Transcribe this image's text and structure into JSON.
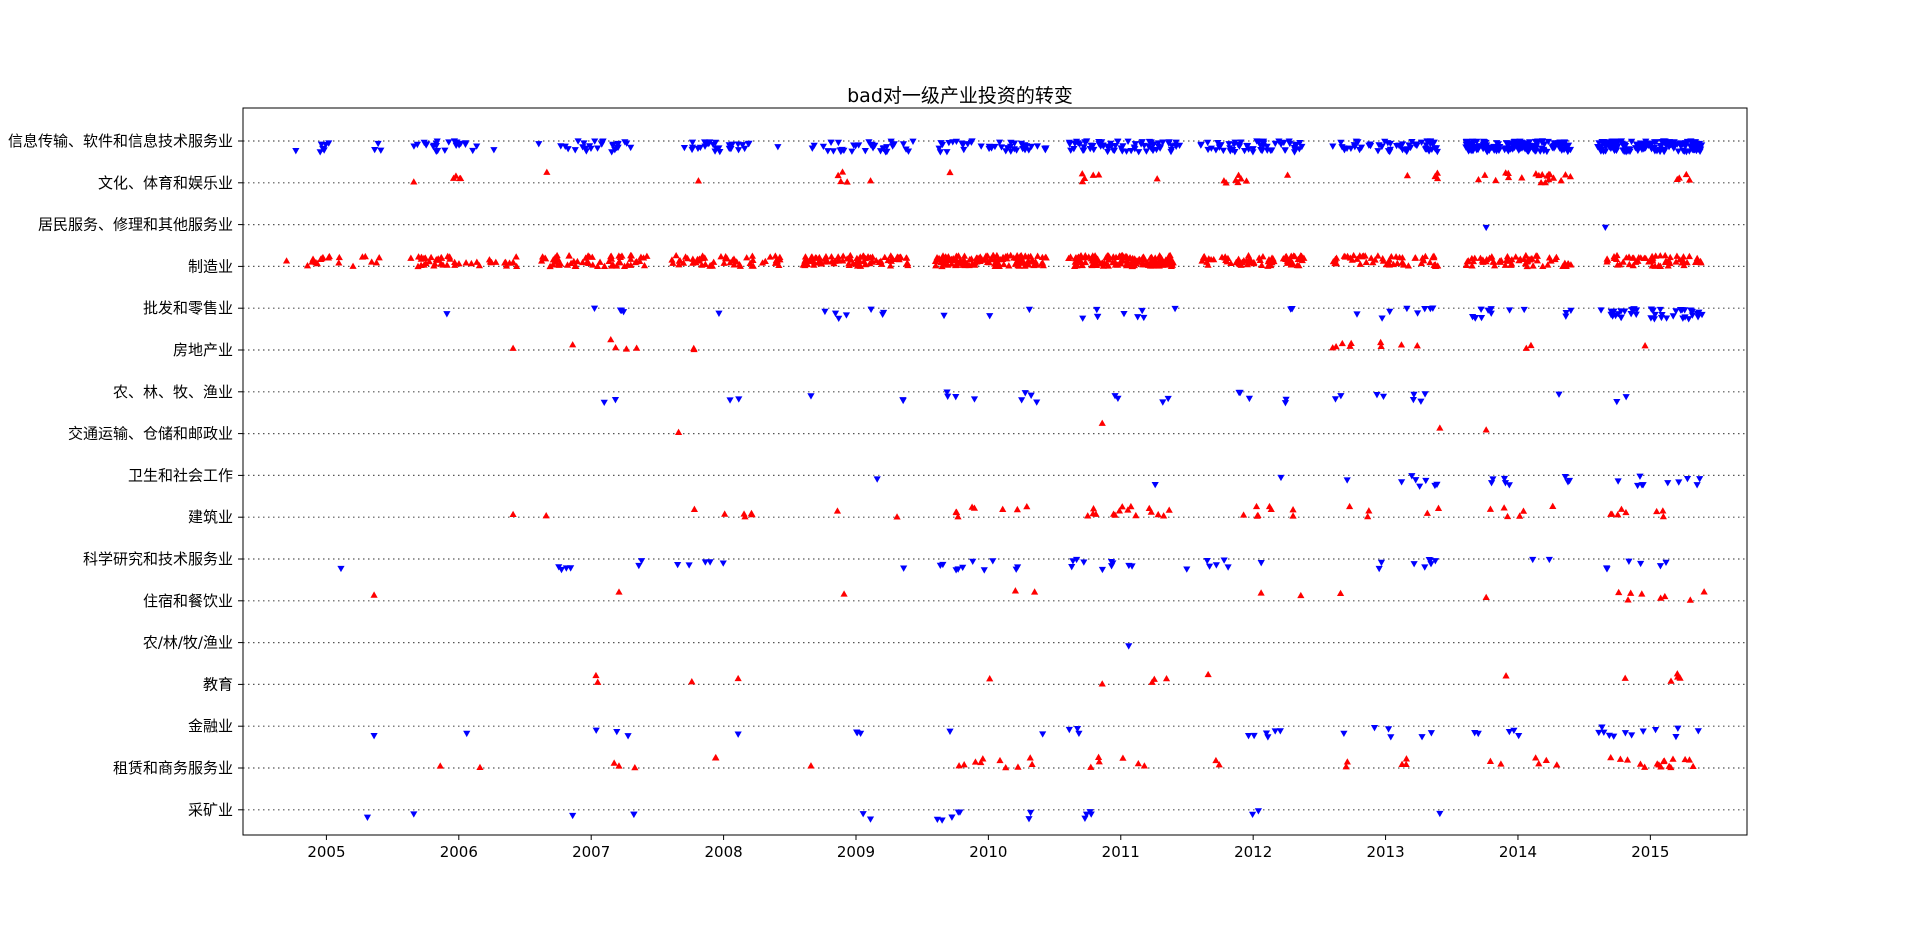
{
  "chart_data": {
    "type": "scatter",
    "title": "bad对一级产业投资的转变",
    "xlabel": "",
    "ylabel": "",
    "x_ticks": [
      "2005",
      "2006",
      "2007",
      "2008",
      "2009",
      "2010",
      "2011",
      "2012",
      "2013",
      "2014",
      "2015"
    ],
    "xlim": [
      2004.37,
      2015.73
    ],
    "grid": "horizontal dotted lines at each category",
    "legend": "none",
    "colors": {
      "up": "#ff0000",
      "down": "#0000ff"
    },
    "markers": {
      "up": "triangle-up (red)",
      "down": "triangle-down (blue)"
    },
    "categories": [
      {
        "label": "信息传输、软件和信息技术服务业",
        "marker": "down",
        "clusters": [
          [
            2004.7,
            2005.1,
            7
          ],
          [
            2005.35,
            2005.42,
            3
          ],
          [
            2005.6,
            2006.15,
            24
          ],
          [
            2006.25,
            2006.28,
            1
          ],
          [
            2006.6,
            2007.3,
            28
          ],
          [
            2007.7,
            2008.2,
            30
          ],
          [
            2008.4,
            2008.42,
            1
          ],
          [
            2008.65,
            2009.45,
            34
          ],
          [
            2009.6,
            2010.45,
            42
          ],
          [
            2010.6,
            2011.45,
            70
          ],
          [
            2011.6,
            2012.4,
            55
          ],
          [
            2012.6,
            2013.4,
            60
          ],
          [
            2013.6,
            2014.4,
            150
          ],
          [
            2014.6,
            2015.4,
            160
          ]
        ]
      },
      {
        "label": "文化、体育和娱乐业",
        "marker": "up",
        "clusters": [
          [
            2005.65,
            2005.67,
            1
          ],
          [
            2005.95,
            2006.05,
            4
          ],
          [
            2006.65,
            2006.68,
            1
          ],
          [
            2007.8,
            2007.82,
            1
          ],
          [
            2008.85,
            2008.95,
            4
          ],
          [
            2009.1,
            2009.12,
            1
          ],
          [
            2009.7,
            2009.72,
            1
          ],
          [
            2010.7,
            2010.85,
            5
          ],
          [
            2011.25,
            2011.3,
            1
          ],
          [
            2011.65,
            2011.95,
            7
          ],
          [
            2012.25,
            2012.27,
            1
          ],
          [
            2013.15,
            2013.18,
            1
          ],
          [
            2013.35,
            2013.4,
            3
          ],
          [
            2013.65,
            2014.4,
            20
          ],
          [
            2015.2,
            2015.4,
            4
          ]
        ]
      },
      {
        "label": "居民服务、修理和其他服务业",
        "marker": "down",
        "clusters": [
          [
            2013.75,
            2013.77,
            1
          ],
          [
            2014.65,
            2014.67,
            1
          ]
        ]
      },
      {
        "label": "制造业",
        "marker": "up",
        "clusters": [
          [
            2004.65,
            2005.1,
            14
          ],
          [
            2005.2,
            2005.45,
            6
          ],
          [
            2005.6,
            2006.45,
            45
          ],
          [
            2006.6,
            2007.45,
            60
          ],
          [
            2007.6,
            2008.45,
            55
          ],
          [
            2008.6,
            2009.4,
            90
          ],
          [
            2009.6,
            2010.45,
            130
          ],
          [
            2010.6,
            2011.4,
            140
          ],
          [
            2011.6,
            2012.4,
            70
          ],
          [
            2012.6,
            2013.4,
            55
          ],
          [
            2013.6,
            2014.4,
            60
          ],
          [
            2014.6,
            2015.4,
            55
          ]
        ]
      },
      {
        "label": "批发和零售业",
        "marker": "down",
        "clusters": [
          [
            2005.9,
            2005.92,
            1
          ],
          [
            2007.0,
            2007.05,
            1
          ],
          [
            2007.2,
            2007.3,
            3
          ],
          [
            2007.95,
            2007.98,
            1
          ],
          [
            2008.7,
            2008.95,
            4
          ],
          [
            2009.1,
            2009.25,
            3
          ],
          [
            2009.65,
            2009.68,
            1
          ],
          [
            2010.0,
            2010.02,
            1
          ],
          [
            2010.3,
            2010.32,
            1
          ],
          [
            2010.7,
            2011.2,
            8
          ],
          [
            2011.4,
            2011.42,
            1
          ],
          [
            2012.2,
            2012.3,
            2
          ],
          [
            2012.7,
            2013.4,
            8
          ],
          [
            2013.65,
            2014.1,
            10
          ],
          [
            2014.35,
            2014.4,
            3
          ],
          [
            2014.6,
            2015.4,
            45
          ]
        ]
      },
      {
        "label": "房地产业",
        "marker": "up",
        "clusters": [
          [
            2006.4,
            2006.42,
            1
          ],
          [
            2006.85,
            2006.87,
            1
          ],
          [
            2007.1,
            2007.4,
            4
          ],
          [
            2007.7,
            2007.9,
            2
          ],
          [
            2012.6,
            2012.75,
            5
          ],
          [
            2012.95,
            2013.3,
            4
          ],
          [
            2014.05,
            2014.1,
            2
          ],
          [
            2014.95,
            2014.97,
            1
          ]
        ]
      },
      {
        "label": "农、林、牧、渔业",
        "marker": "down",
        "clusters": [
          [
            2007.05,
            2007.3,
            2
          ],
          [
            2007.95,
            2008.2,
            2
          ],
          [
            2008.65,
            2008.67,
            1
          ],
          [
            2009.05,
            2009.4,
            2
          ],
          [
            2009.6,
            2009.95,
            4
          ],
          [
            2010.2,
            2010.4,
            4
          ],
          [
            2010.95,
            2011.0,
            2
          ],
          [
            2011.3,
            2011.4,
            2
          ],
          [
            2011.8,
            2012.3,
            5
          ],
          [
            2012.6,
            2013.35,
            8
          ],
          [
            2014.3,
            2014.32,
            1
          ],
          [
            2014.7,
            2014.85,
            2
          ]
        ]
      },
      {
        "label": "交通运输、仓储和邮政业",
        "marker": "up",
        "clusters": [
          [
            2007.65,
            2007.67,
            1
          ],
          [
            2010.85,
            2010.87,
            1
          ],
          [
            2013.4,
            2013.42,
            1
          ],
          [
            2013.75,
            2013.77,
            1
          ]
        ]
      },
      {
        "label": "卫生和社会工作",
        "marker": "down",
        "clusters": [
          [
            2009.15,
            2009.17,
            1
          ],
          [
            2011.25,
            2011.27,
            1
          ],
          [
            2012.2,
            2012.22,
            1
          ],
          [
            2012.7,
            2012.72,
            1
          ],
          [
            2013.1,
            2013.4,
            7
          ],
          [
            2013.8,
            2014.0,
            5
          ],
          [
            2014.35,
            2014.4,
            3
          ],
          [
            2014.7,
            2015.4,
            10
          ]
        ]
      },
      {
        "label": "建筑业",
        "marker": "up",
        "clusters": [
          [
            2006.4,
            2006.42,
            1
          ],
          [
            2006.65,
            2006.67,
            1
          ],
          [
            2007.65,
            2008.4,
            6
          ],
          [
            2008.85,
            2008.87,
            1
          ],
          [
            2009.3,
            2009.32,
            1
          ],
          [
            2009.7,
            2010.35,
            8
          ],
          [
            2010.65,
            2011.4,
            16
          ],
          [
            2011.6,
            2012.35,
            8
          ],
          [
            2012.7,
            2013.0,
            3
          ],
          [
            2013.3,
            2013.4,
            2
          ],
          [
            2013.7,
            2014.4,
            6
          ],
          [
            2014.7,
            2015.1,
            8
          ]
        ]
      },
      {
        "label": "科学研究和技术服务业",
        "marker": "down",
        "clusters": [
          [
            2005.1,
            2005.12,
            1
          ],
          [
            2006.65,
            2006.85,
            4
          ],
          [
            2007.3,
            2007.4,
            2
          ],
          [
            2007.65,
            2008.2,
            5
          ],
          [
            2009.35,
            2009.37,
            1
          ],
          [
            2009.6,
            2010.3,
            10
          ],
          [
            2010.6,
            2011.1,
            10
          ],
          [
            2011.4,
            2012.2,
            7
          ],
          [
            2012.8,
            2013.4,
            8
          ],
          [
            2014.1,
            2014.3,
            2
          ],
          [
            2014.6,
            2015.2,
            6
          ]
        ]
      },
      {
        "label": "住宿和餐饮业",
        "marker": "up",
        "clusters": [
          [
            2005.35,
            2005.37,
            1
          ],
          [
            2007.2,
            2007.22,
            1
          ],
          [
            2008.9,
            2008.92,
            1
          ],
          [
            2010.2,
            2010.35,
            2
          ],
          [
            2012.05,
            2012.07,
            1
          ],
          [
            2012.35,
            2012.37,
            1
          ],
          [
            2012.65,
            2012.67,
            1
          ],
          [
            2013.75,
            2013.77,
            1
          ],
          [
            2014.7,
            2015.45,
            8
          ]
        ]
      },
      {
        "label": "农/林/牧/渔业",
        "marker": "down",
        "clusters": [
          [
            2011.05,
            2011.07,
            1
          ]
        ]
      },
      {
        "label": "教育",
        "marker": "up",
        "clusters": [
          [
            2006.85,
            2007.05,
            2
          ],
          [
            2007.75,
            2007.77,
            1
          ],
          [
            2008.1,
            2008.12,
            1
          ],
          [
            2010.0,
            2010.02,
            1
          ],
          [
            2010.85,
            2010.87,
            1
          ],
          [
            2011.15,
            2011.35,
            3
          ],
          [
            2011.65,
            2011.67,
            1
          ],
          [
            2013.9,
            2013.92,
            1
          ],
          [
            2014.8,
            2014.82,
            1
          ],
          [
            2015.15,
            2015.35,
            4
          ]
        ]
      },
      {
        "label": "金融业",
        "marker": "down",
        "clusters": [
          [
            2005.35,
            2005.37,
            1
          ],
          [
            2006.05,
            2006.07,
            1
          ],
          [
            2006.9,
            2007.4,
            3
          ],
          [
            2008.1,
            2008.12,
            1
          ],
          [
            2008.9,
            2009.05,
            3
          ],
          [
            2009.7,
            2009.72,
            1
          ],
          [
            2010.4,
            2010.42,
            1
          ],
          [
            2010.6,
            2011.05,
            3
          ],
          [
            2011.9,
            2012.4,
            6
          ],
          [
            2012.65,
            2013.4,
            6
          ],
          [
            2013.6,
            2014.05,
            5
          ],
          [
            2014.6,
            2015.4,
            12
          ]
        ]
      },
      {
        "label": "租赁和商务服务业",
        "marker": "up",
        "clusters": [
          [
            2005.85,
            2005.87,
            1
          ],
          [
            2006.15,
            2006.17,
            1
          ],
          [
            2007.05,
            2007.35,
            3
          ],
          [
            2007.85,
            2008.1,
            2
          ],
          [
            2008.65,
            2008.67,
            1
          ],
          [
            2009.65,
            2010.35,
            10
          ],
          [
            2010.75,
            2011.25,
            6
          ],
          [
            2011.65,
            2011.75,
            2
          ],
          [
            2012.7,
            2012.75,
            2
          ],
          [
            2013.1,
            2013.25,
            3
          ],
          [
            2013.7,
            2014.4,
            6
          ],
          [
            2014.7,
            2015.4,
            16
          ]
        ]
      },
      {
        "label": "采矿业",
        "marker": "down",
        "clusters": [
          [
            2005.3,
            2005.32,
            1
          ],
          [
            2005.65,
            2005.67,
            1
          ],
          [
            2006.85,
            2006.87,
            1
          ],
          [
            2007.3,
            2007.4,
            2
          ],
          [
            2009.05,
            2009.3,
            2
          ],
          [
            2009.6,
            2009.85,
            5
          ],
          [
            2010.3,
            2010.35,
            2
          ],
          [
            2010.7,
            2011.25,
            4
          ],
          [
            2011.95,
            2012.05,
            2
          ],
          [
            2013.4,
            2013.42,
            1
          ]
        ]
      }
    ]
  }
}
